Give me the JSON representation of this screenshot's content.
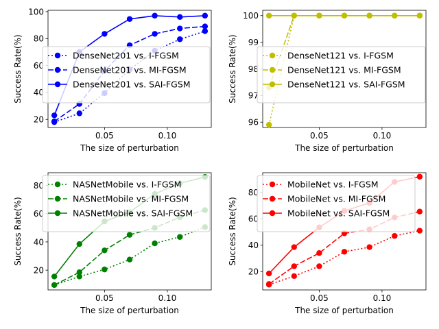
{
  "chart_data": [
    {
      "type": "line",
      "xlabel": "The size of perturbation",
      "ylabel": "Success Rate(%)",
      "xlim": [
        0.005,
        0.135
      ],
      "ylim": [
        14,
        101
      ],
      "xticks": [
        0.05,
        0.1
      ],
      "xtick_labels": [
        "0.05",
        "0.10"
      ],
      "yticks": [
        20,
        40,
        60,
        80,
        100
      ],
      "ytick_labels": [
        "20",
        "40",
        "60",
        "80",
        "100"
      ],
      "legend_position": "center-left",
      "color": "#0000ff",
      "x": [
        0.01,
        0.03,
        0.05,
        0.07,
        0.09,
        0.11,
        0.13
      ],
      "series": [
        {
          "name": "DenseNet201 vs. I-FGSM",
          "style": "dotted",
          "values": [
            18,
            24.5,
            39.5,
            57,
            71,
            79.5,
            85.5
          ]
        },
        {
          "name": "DenseNet201 vs. MI-FGSM",
          "style": "dashed",
          "values": [
            18.5,
            31.5,
            56,
            75,
            83.5,
            87.5,
            89
          ]
        },
        {
          "name": "DenseNet201 vs. SAI-FGSM",
          "style": "solid",
          "values": [
            23,
            70,
            83.5,
            94.5,
            97,
            96,
            97
          ]
        }
      ]
    },
    {
      "type": "line",
      "xlabel": "The size of perturbation",
      "ylabel": "Success Rate(%)",
      "xlim": [
        0.005,
        0.135
      ],
      "ylim": [
        95.8,
        100.2
      ],
      "xticks": [
        0.05,
        0.1
      ],
      "xtick_labels": [
        "0.05",
        "0.10"
      ],
      "yticks": [
        96,
        97,
        98,
        99,
        100
      ],
      "ytick_labels": [
        "96",
        "97",
        "98",
        "99",
        "100"
      ],
      "legend_position": "center",
      "color": "#bfbf00",
      "x": [
        0.01,
        0.03,
        0.05,
        0.07,
        0.09,
        0.11,
        0.13
      ],
      "series": [
        {
          "name": "DenseNet121 vs. I-FGSM",
          "style": "dotted",
          "values": [
            95.9,
            100,
            100,
            100,
            100,
            100,
            100
          ]
        },
        {
          "name": "DenseNet121 vs. MI-FGSM",
          "style": "dashed",
          "values": [
            97.3,
            100,
            100,
            100,
            100,
            100,
            100
          ]
        },
        {
          "name": "DenseNet121 vs. SAI-FGSM",
          "style": "solid",
          "values": [
            100,
            100,
            100,
            100,
            100,
            100,
            100
          ]
        }
      ]
    },
    {
      "type": "line",
      "xlabel": "The size of perturbation",
      "ylabel": "Success Rate(%)",
      "xlim": [
        0.005,
        0.135
      ],
      "ylim": [
        6,
        89
      ],
      "xticks": [
        0.05,
        0.1
      ],
      "xtick_labels": [
        "0.05",
        "0.10"
      ],
      "yticks": [
        20,
        40,
        60,
        80
      ],
      "ytick_labels": [
        "20",
        "40",
        "60",
        "80"
      ],
      "legend_position": "upper-left",
      "color": "#008000",
      "x": [
        0.01,
        0.03,
        0.05,
        0.07,
        0.09,
        0.11,
        0.13
      ],
      "series": [
        {
          "name": "NASNetMobile vs. I-FGSM",
          "style": "dotted",
          "values": [
            9.5,
            15.5,
            20.5,
            27.5,
            39,
            43.5,
            50.5
          ]
        },
        {
          "name": "NASNetMobile vs. MI-FGSM",
          "style": "dashed",
          "values": [
            9.5,
            18.5,
            34,
            45,
            50,
            57.5,
            62.5
          ]
        },
        {
          "name": "NASNetMobile vs. SAI-FGSM",
          "style": "solid",
          "values": [
            15.5,
            38.5,
            54.5,
            61,
            74,
            81.5,
            86
          ]
        }
      ]
    },
    {
      "type": "line",
      "xlabel": "The size of perturbation",
      "ylabel": "Success Rate(%)",
      "xlim": [
        0.005,
        0.135
      ],
      "ylim": [
        6,
        95
      ],
      "xticks": [
        0.05,
        0.1
      ],
      "xtick_labels": [
        "0.05",
        "0.10"
      ],
      "yticks": [
        20,
        40,
        60,
        80
      ],
      "ytick_labels": [
        "20",
        "40",
        "60",
        "80"
      ],
      "legend_position": "upper-left",
      "color": "#ff0000",
      "x": [
        0.01,
        0.03,
        0.05,
        0.07,
        0.09,
        0.11,
        0.13
      ],
      "series": [
        {
          "name": "MobileNet vs. I-FGSM",
          "style": "dotted",
          "values": [
            10,
            16.5,
            24,
            35,
            38.5,
            47,
            51
          ]
        },
        {
          "name": "MobileNet vs. MI-FGSM",
          "style": "dashed",
          "values": [
            10.5,
            24,
            34,
            49,
            52,
            61,
            65.5
          ]
        },
        {
          "name": "MobileNet vs. SAI-FGSM",
          "style": "solid",
          "values": [
            18.5,
            38.5,
            53.5,
            66,
            72,
            88,
            92
          ]
        }
      ]
    }
  ]
}
